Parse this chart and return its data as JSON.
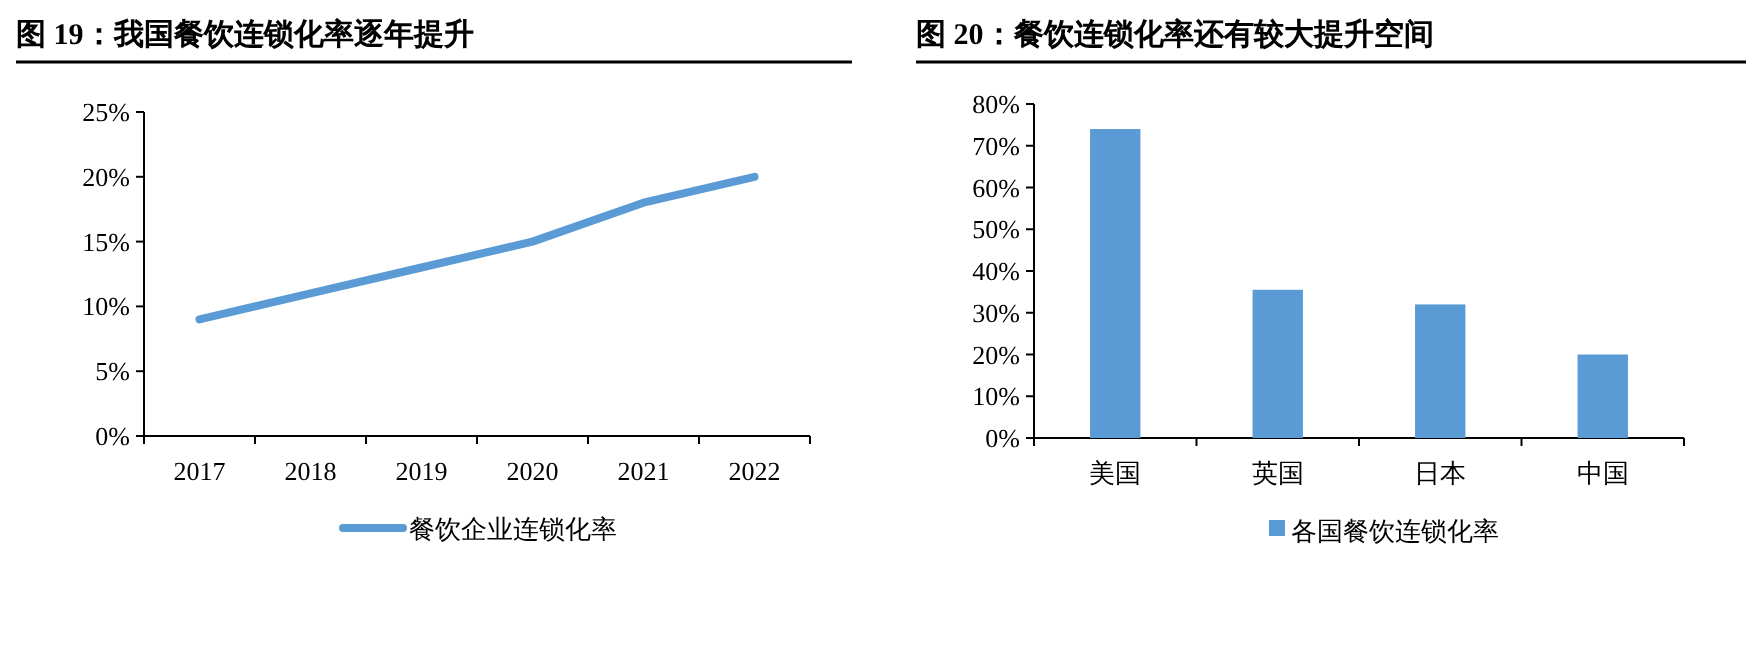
{
  "chart_data": [
    {
      "type": "line",
      "title": "图 19：我国餐饮连锁化率逐年提升",
      "categories": [
        "2017",
        "2018",
        "2019",
        "2020",
        "2021",
        "2022"
      ],
      "series": [
        {
          "name": "餐饮企业连锁化率",
          "color": "#5b9bd5",
          "values": [
            9,
            11,
            13,
            15,
            18,
            20
          ]
        }
      ],
      "ylim": [
        0,
        25
      ],
      "yticks": [
        {
          "value": 0,
          "label": "0%"
        },
        {
          "value": 5,
          "label": "5%"
        },
        {
          "value": 10,
          "label": "10%"
        },
        {
          "value": 15,
          "label": "15%"
        },
        {
          "value": 20,
          "label": "20%"
        },
        {
          "value": 25,
          "label": "25%"
        }
      ],
      "legend": "bottom",
      "marker": "none",
      "line_style": "solid"
    },
    {
      "type": "bar",
      "title": "图 20：餐饮连锁化率还有较大提升空间",
      "categories": [
        "美国",
        "英国",
        "日本",
        "中国"
      ],
      "series": [
        {
          "name": "各国餐饮连锁化率",
          "color": "#5b9bd5",
          "values": [
            74,
            35.5,
            32,
            20
          ]
        }
      ],
      "ylim": [
        0,
        80
      ],
      "yticks": [
        {
          "value": 0,
          "label": "0%"
        },
        {
          "value": 10,
          "label": "10%"
        },
        {
          "value": 20,
          "label": "20%"
        },
        {
          "value": 30,
          "label": "30%"
        },
        {
          "value": 40,
          "label": "40%"
        },
        {
          "value": 50,
          "label": "50%"
        },
        {
          "value": 60,
          "label": "60%"
        },
        {
          "value": 70,
          "label": "70%"
        },
        {
          "value": 80,
          "label": "80%"
        }
      ],
      "legend": "bottom"
    }
  ]
}
